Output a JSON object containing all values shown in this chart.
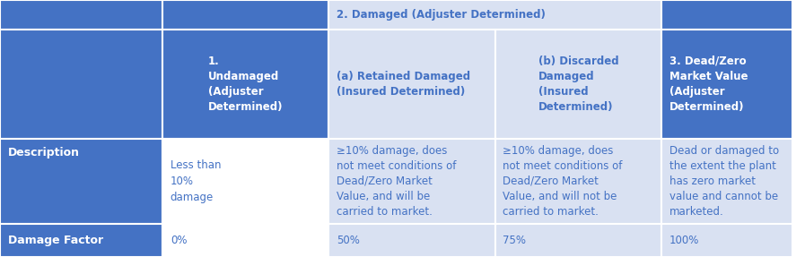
{
  "fig_width": 8.97,
  "fig_height": 2.87,
  "dpi": 100,
  "blue_dark": "#4472C4",
  "blue_light": "#D9E1F2",
  "white": "#FFFFFF",
  "text_blue": "#4472C4",
  "border_color": "#FFFFFF",
  "col_boundaries": [
    0.0,
    0.205,
    0.415,
    0.625,
    0.835,
    1.0
  ],
  "row_tops": [
    1.0,
    0.885,
    0.46,
    0.13
  ],
  "row_bottoms": [
    0.885,
    0.46,
    0.13,
    0.0
  ],
  "header_top_text": "2. Damaged (Adjuster Determined)",
  "col1_header": "1.\nUndamaged\n(Adjuster\nDetermined)",
  "col2_header": "(a) Retained Damaged\n(Insured Determined)",
  "col3_header": "(b) Discarded\nDamaged\n(Insured\nDetermined)",
  "col4_header": "3. Dead/Zero\nMarket Value\n(Adjuster\nDetermined)",
  "desc_label": "Description",
  "desc_col1": "Less than\n10%\ndamage",
  "desc_col2": "≥10% damage, does\nnot meet conditions of\nDead/Zero Market\nValue, and will be\ncarried to market.",
  "desc_col3": "≥10% damage, does\nnot meet conditions of\nDead/Zero Market\nValue, and will not be\ncarried to market.",
  "desc_col4": "Dead or damaged to\nthe extent the plant\nhas zero market\nvalue and cannot be\nmarketed.",
  "dmg_label": "Damage Factor",
  "dmg_col1": "0%",
  "dmg_col2": "50%",
  "dmg_col3": "75%",
  "dmg_col4": "100%",
  "font_size_header": 8.5,
  "font_size_data": 8.5,
  "font_size_label": 9.0
}
